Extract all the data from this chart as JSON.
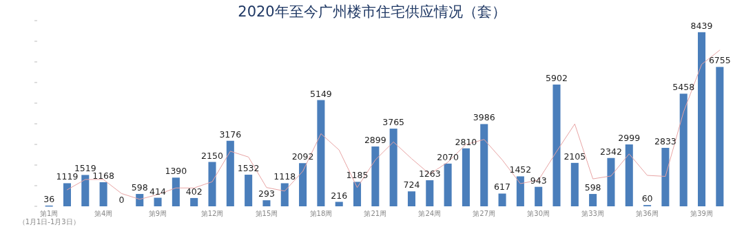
{
  "chart_data": {
    "type": "bar",
    "title": "2020年至今广州楼市住宅供应情况（套）",
    "categories": [
      "第1周（1月1日-1月3日）",
      null,
      null,
      "第4周",
      null,
      null,
      "第9周",
      null,
      null,
      "第12周",
      null,
      null,
      "第15周",
      null,
      null,
      "第18周",
      null,
      null,
      "第21周",
      null,
      null,
      "第24周",
      null,
      null,
      "第27周",
      null,
      null,
      "第30周",
      null,
      null,
      "第33周",
      null,
      null,
      "第36周",
      null,
      null,
      "第39周",
      null
    ],
    "series": [
      {
        "color": "#4a7ebb",
        "values": [
          36,
          1119,
          1519,
          1168,
          0,
          598,
          414,
          1390,
          402,
          2150,
          3176,
          1532,
          293,
          1118,
          2092,
          5149,
          216,
          1185,
          2899,
          3765,
          724,
          1263,
          2070,
          2810,
          3986,
          617,
          1452,
          943,
          5902,
          2105,
          598,
          2342,
          2999,
          60,
          2833,
          5458,
          8439,
          6755
        ],
        "value_labels": [
          "36",
          "1119",
          "1519",
          "1168",
          "0",
          "598",
          "414",
          "1390",
          "402",
          "2150",
          "3176",
          "1532",
          "293",
          "1118",
          "2092",
          "5149",
          "216",
          "1185",
          "2899",
          "3765",
          "724",
          "1263",
          "2070",
          "2810",
          "3986",
          "617",
          "1452",
          "943",
          "5902",
          "2105",
          "598",
          "2342",
          "2999",
          "60",
          "2833",
          "5458",
          "8439",
          "6755"
        ]
      },
      {
        "type": "line",
        "color": "#e8a4a4",
        "values": [
          null,
          800,
          1300,
          1300,
          620,
          340,
          570,
          890,
          890,
          1190,
          2670,
          2390,
          910,
          740,
          1700,
          3520,
          2730,
          910,
          2250,
          3120,
          2310,
          1560,
          2140,
          3000,
          3240,
          2250,
          1100,
          1270,
          2660,
          3990,
          1330,
          1470,
          2540,
          1500,
          1450,
          4570,
          6880,
          7570
        ]
      }
    ],
    "yticks": [
      {
        "value": 0,
        "label": null
      },
      {
        "value": 1000,
        "label": null
      },
      {
        "value": 2000,
        "label": null
      },
      {
        "value": 3000,
        "label": null
      },
      {
        "value": 4000,
        "label": null
      },
      {
        "value": 5000,
        "label": null
      },
      {
        "value": 6000,
        "label": null
      },
      {
        "value": 7000,
        "label": null
      },
      {
        "value": 8000,
        "label": null
      },
      {
        "value": 9000,
        "label": null
      }
    ],
    "grid": false,
    "marker": "none",
    "line_style": "solid"
  }
}
